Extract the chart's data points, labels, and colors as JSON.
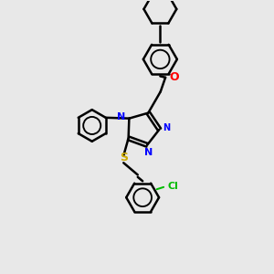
{
  "bg_color": "#e8e8e8",
  "atom_colors": {
    "N": "#0000ff",
    "O": "#ff0000",
    "S": "#ccaa00",
    "Cl": "#00bb00",
    "C": "#000000"
  },
  "bond_color": "#000000",
  "bond_width": 1.8,
  "fig_w": 3.0,
  "fig_h": 3.0,
  "dpi": 100,
  "xlim": [
    0,
    10
  ],
  "ylim": [
    0,
    10
  ],
  "font_size": 8
}
